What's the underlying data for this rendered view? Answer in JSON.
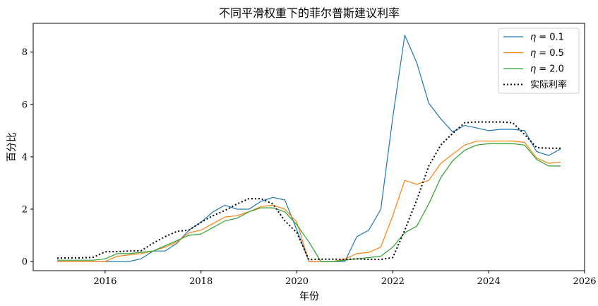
{
  "chart_data": {
    "type": "line",
    "title": "不同平滑权重下的菲尔普斯建议利率",
    "xlabel": "年份",
    "ylabel": "百分比",
    "xlim": [
      2014.5,
      2026.0
    ],
    "ylim": [
      -0.35,
      9.1
    ],
    "xticks": [
      2016,
      2018,
      2020,
      2022,
      2024,
      2026
    ],
    "yticks": [
      0,
      2,
      4,
      6,
      8
    ],
    "grid": false,
    "legend_position": "top-right",
    "x": [
      2015.0,
      2015.25,
      2015.5,
      2015.75,
      2016.0,
      2016.25,
      2016.5,
      2016.75,
      2017.0,
      2017.25,
      2017.5,
      2017.75,
      2018.0,
      2018.25,
      2018.5,
      2018.75,
      2019.0,
      2019.25,
      2019.5,
      2019.75,
      2020.0,
      2020.25,
      2020.5,
      2020.75,
      2021.0,
      2021.25,
      2021.5,
      2021.75,
      2022.0,
      2022.25,
      2022.5,
      2022.75,
      2023.0,
      2023.25,
      2023.5,
      2023.75,
      2024.0,
      2024.25,
      2024.5,
      2024.75,
      2025.0,
      2025.25,
      2025.5
    ],
    "series": [
      {
        "name": "η = 0.1",
        "label_sym": "η",
        "label_val": "= 0.1",
        "color": "#1f77b4",
        "style": "solid",
        "values": [
          0.0,
          0.0,
          0.0,
          0.0,
          0.0,
          0.0,
          0.0,
          0.1,
          0.4,
          0.4,
          0.7,
          1.2,
          1.5,
          1.9,
          2.15,
          2.0,
          2.0,
          2.3,
          2.45,
          2.35,
          1.2,
          0.0,
          0.0,
          0.0,
          0.0,
          0.95,
          1.2,
          2.0,
          5.5,
          8.65,
          7.6,
          6.05,
          5.45,
          4.95,
          5.2,
          5.1,
          5.0,
          5.05,
          5.05,
          5.0,
          4.2,
          4.05,
          4.3
        ]
      },
      {
        "name": "η = 0.5",
        "label_sym": "η",
        "label_val": "= 0.5",
        "color": "#ff7f0e",
        "style": "solid",
        "values": [
          0.0,
          0.0,
          0.0,
          0.0,
          0.0,
          0.2,
          0.25,
          0.3,
          0.4,
          0.55,
          0.75,
          1.1,
          1.2,
          1.45,
          1.7,
          1.75,
          1.9,
          2.1,
          2.15,
          2.0,
          1.5,
          0.0,
          0.0,
          0.0,
          0.1,
          0.3,
          0.35,
          0.55,
          1.75,
          3.1,
          2.95,
          3.1,
          3.75,
          4.1,
          4.45,
          4.6,
          4.6,
          4.6,
          4.6,
          4.55,
          3.95,
          3.75,
          3.8
        ]
      },
      {
        "name": "η = 2.0",
        "label_sym": "η",
        "label_val": "= 2.0",
        "color": "#2ca02c",
        "style": "solid",
        "values": [
          0.05,
          0.05,
          0.05,
          0.05,
          0.1,
          0.3,
          0.3,
          0.35,
          0.4,
          0.6,
          0.8,
          1.0,
          1.05,
          1.3,
          1.55,
          1.65,
          1.9,
          2.05,
          2.05,
          1.9,
          1.4,
          0.75,
          0.0,
          0.0,
          0.05,
          0.1,
          0.15,
          0.2,
          0.55,
          1.1,
          1.35,
          2.2,
          3.2,
          3.85,
          4.25,
          4.45,
          4.5,
          4.5,
          4.5,
          4.45,
          3.9,
          3.65,
          3.65
        ]
      },
      {
        "name": "实际利率",
        "label_sym": "",
        "label_val": "实际利率",
        "color": "#000000",
        "style": "dotted",
        "values": [
          0.13,
          0.14,
          0.14,
          0.16,
          0.37,
          0.38,
          0.4,
          0.41,
          0.7,
          0.95,
          1.15,
          1.2,
          1.5,
          1.75,
          1.95,
          2.2,
          2.4,
          2.4,
          2.2,
          1.55,
          1.1,
          0.07,
          0.09,
          0.09,
          0.08,
          0.1,
          0.08,
          0.08,
          0.15,
          1.2,
          2.35,
          3.65,
          4.45,
          4.9,
          5.3,
          5.33,
          5.33,
          5.33,
          5.3,
          4.85,
          4.35,
          4.33,
          4.33
        ]
      }
    ]
  }
}
